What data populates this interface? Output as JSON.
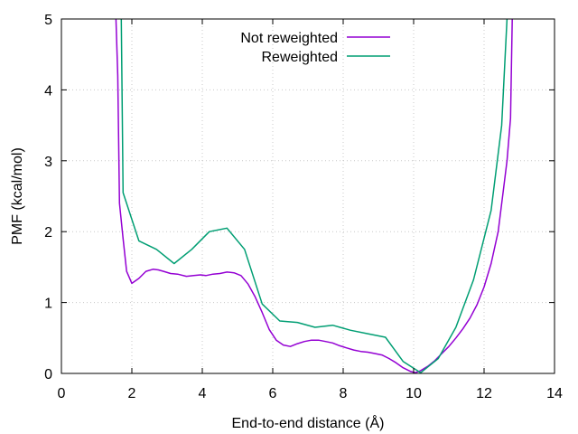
{
  "chart_data": {
    "type": "line",
    "xlabel": "End-to-end distance (Å)",
    "ylabel": "PMF (kcal/mol)",
    "xlim": [
      0,
      14
    ],
    "ylim": [
      0,
      5
    ],
    "xticks": [
      "0",
      "2",
      "4",
      "6",
      "8",
      "10",
      "12",
      "14"
    ],
    "yticks": [
      "0",
      "1",
      "2",
      "3",
      "4",
      "5"
    ],
    "grid": true,
    "legend_position": "top-center",
    "series": [
      {
        "name": "Not reweighted",
        "color": "#9400d3",
        "x": [
          1.55,
          1.6,
          1.65,
          1.75,
          1.85,
          2.0,
          2.2,
          2.4,
          2.6,
          2.75,
          2.9,
          3.1,
          3.3,
          3.55,
          3.75,
          3.95,
          4.1,
          4.3,
          4.5,
          4.7,
          4.9,
          5.1,
          5.3,
          5.5,
          5.7,
          5.9,
          6.1,
          6.3,
          6.5,
          6.7,
          6.9,
          7.1,
          7.3,
          7.5,
          7.7,
          7.9,
          8.1,
          8.3,
          8.5,
          8.7,
          8.9,
          9.1,
          9.3,
          9.5,
          9.7,
          9.9,
          10.05,
          10.2,
          10.4,
          10.6,
          10.8,
          11.0,
          11.2,
          11.4,
          11.6,
          11.8,
          12.0,
          12.2,
          12.4,
          12.55,
          12.65,
          12.75,
          12.8
        ],
        "y": [
          5.0,
          4.2,
          2.4,
          1.9,
          1.44,
          1.27,
          1.34,
          1.44,
          1.47,
          1.46,
          1.44,
          1.41,
          1.4,
          1.37,
          1.38,
          1.39,
          1.38,
          1.4,
          1.41,
          1.43,
          1.42,
          1.38,
          1.26,
          1.08,
          0.86,
          0.62,
          0.47,
          0.4,
          0.38,
          0.42,
          0.45,
          0.47,
          0.47,
          0.45,
          0.43,
          0.39,
          0.36,
          0.33,
          0.31,
          0.3,
          0.28,
          0.26,
          0.21,
          0.15,
          0.08,
          0.03,
          0.01,
          0.04,
          0.1,
          0.18,
          0.28,
          0.38,
          0.5,
          0.63,
          0.78,
          0.97,
          1.22,
          1.55,
          2.0,
          2.6,
          3.0,
          3.6,
          5.0
        ]
      },
      {
        "name": "Reweighted",
        "color": "#009e73",
        "x": [
          1.7,
          1.75,
          2.2,
          2.7,
          3.2,
          3.7,
          4.2,
          4.7,
          5.2,
          5.7,
          6.2,
          6.7,
          7.2,
          7.7,
          8.2,
          8.7,
          9.2,
          9.7,
          10.2,
          10.7,
          11.2,
          11.7,
          12.2,
          12.5,
          12.65
        ],
        "y": [
          5.0,
          2.55,
          1.87,
          1.75,
          1.55,
          1.75,
          2.0,
          2.05,
          1.75,
          0.98,
          0.74,
          0.72,
          0.65,
          0.68,
          0.61,
          0.56,
          0.51,
          0.17,
          0.01,
          0.21,
          0.65,
          1.32,
          2.3,
          3.5,
          5.0
        ]
      }
    ]
  }
}
